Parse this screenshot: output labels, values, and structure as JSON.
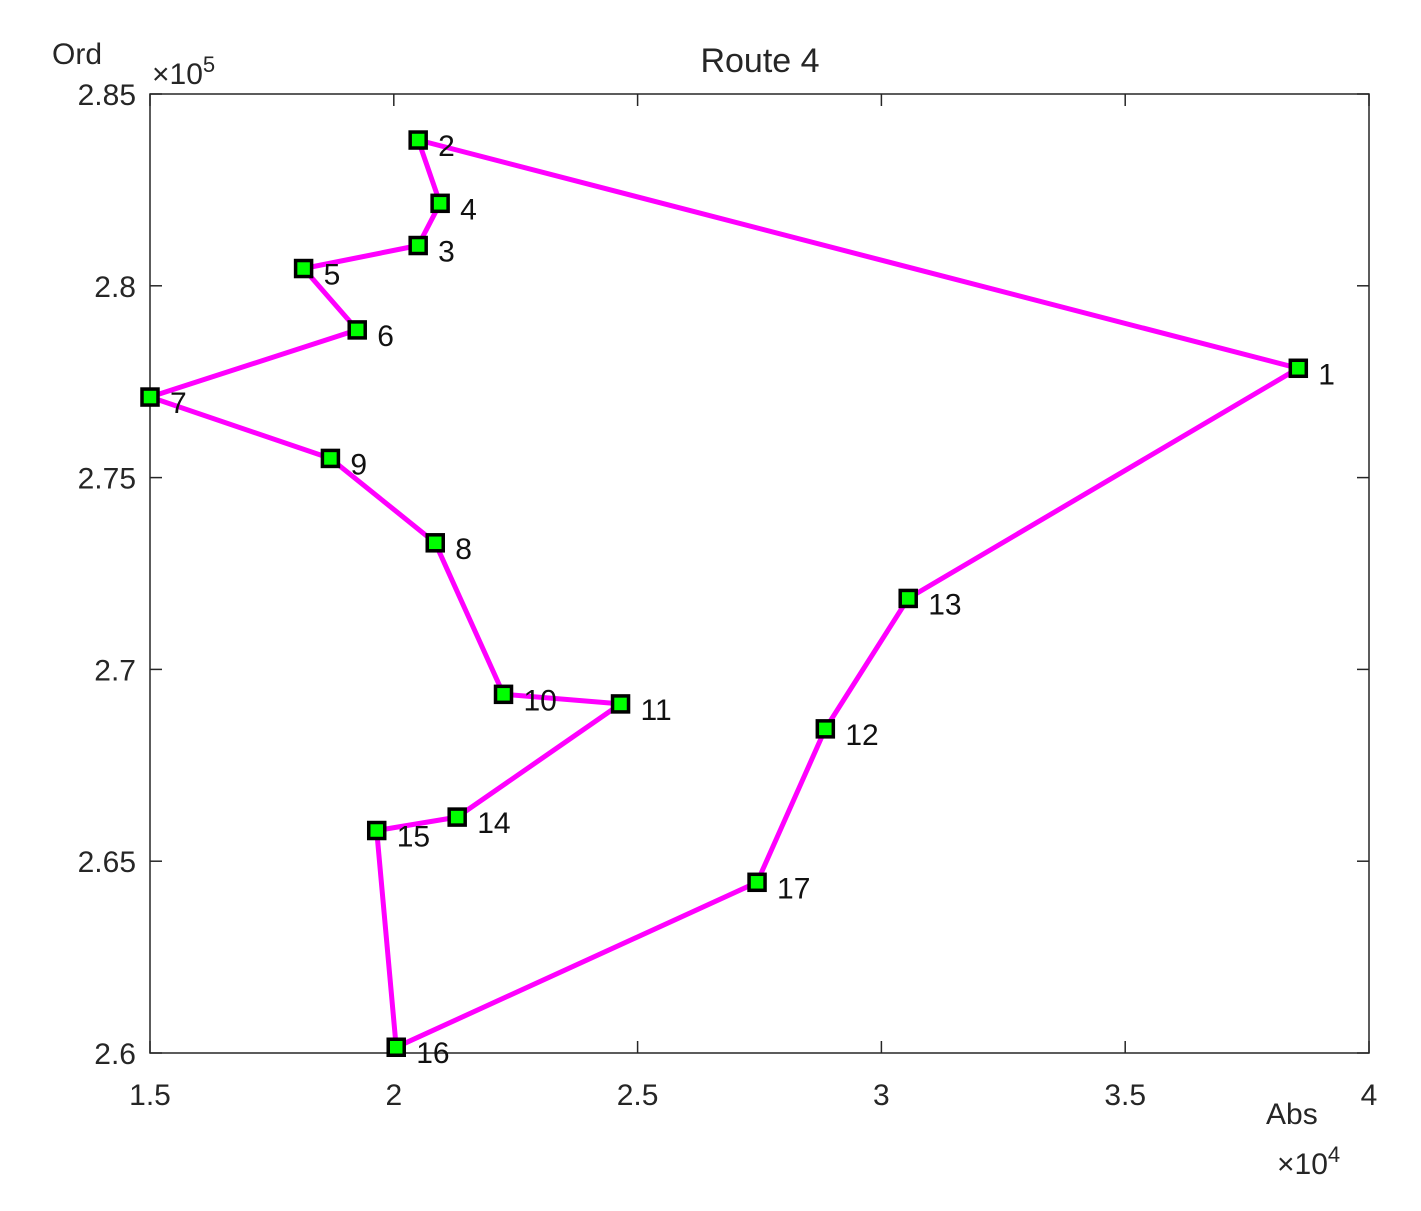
{
  "chart_data": {
    "type": "line",
    "title": "Route 4",
    "xlabel": "Abs",
    "ylabel": "Ord",
    "x_multiplier": "×10",
    "x_multiplier_exp": "4",
    "y_multiplier": "×10",
    "y_multiplier_exp": "5",
    "xlim": [
      15000,
      40000
    ],
    "ylim": [
      260000,
      285000
    ],
    "xticks": [
      15000,
      20000,
      25000,
      30000,
      35000,
      40000
    ],
    "xtick_labels": [
      "1.5",
      "2",
      "2.5",
      "3",
      "3.5",
      "4"
    ],
    "yticks": [
      260000,
      265000,
      270000,
      275000,
      280000,
      285000
    ],
    "ytick_labels": [
      "2.6",
      "2.65",
      "2.7",
      "2.75",
      "2.8",
      "2.85"
    ],
    "grid": false,
    "line_color": "#ff00ff",
    "marker_face_color": "#00ff00",
    "marker_edge_color": "#000000",
    "points": [
      {
        "label": "1",
        "x": 38550,
        "y": 277850
      },
      {
        "label": "2",
        "x": 20500,
        "y": 283800
      },
      {
        "label": "4",
        "x": 20950,
        "y": 282150
      },
      {
        "label": "3",
        "x": 20500,
        "y": 281050
      },
      {
        "label": "5",
        "x": 18150,
        "y": 280450
      },
      {
        "label": "6",
        "x": 19250,
        "y": 278850
      },
      {
        "label": "7",
        "x": 15000,
        "y": 277100
      },
      {
        "label": "9",
        "x": 18700,
        "y": 275500
      },
      {
        "label": "8",
        "x": 20850,
        "y": 273300
      },
      {
        "label": "10",
        "x": 22250,
        "y": 269350
      },
      {
        "label": "11",
        "x": 24650,
        "y": 269100
      },
      {
        "label": "14",
        "x": 21300,
        "y": 266150
      },
      {
        "label": "15",
        "x": 19650,
        "y": 265800
      },
      {
        "label": "16",
        "x": 20050,
        "y": 260150
      },
      {
        "label": "17",
        "x": 27450,
        "y": 264450
      },
      {
        "label": "12",
        "x": 28850,
        "y": 268450
      },
      {
        "label": "13",
        "x": 30550,
        "y": 271850
      },
      {
        "label": "1",
        "x": 38550,
        "y": 277850
      }
    ]
  }
}
